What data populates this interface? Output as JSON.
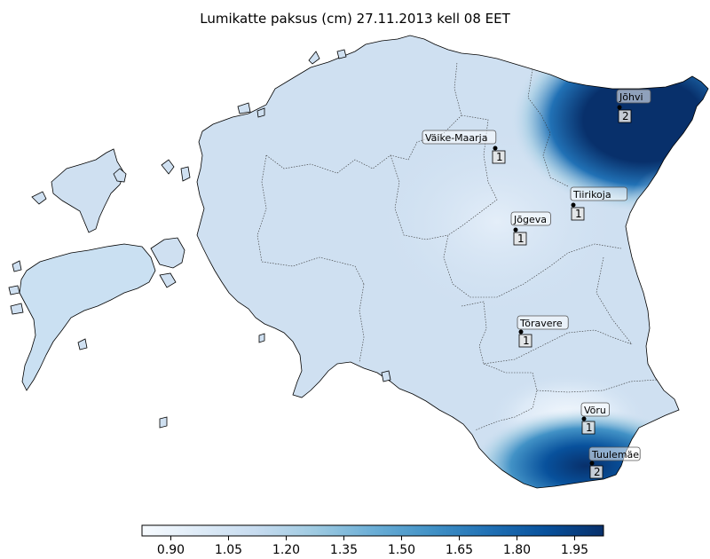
{
  "title": "Lumikatte paksus (cm) 27.11.2013 kell 08 EET",
  "stations": [
    {
      "name": "Jõhvi",
      "value": "2"
    },
    {
      "name": "Väike-Maarja",
      "value": "1"
    },
    {
      "name": "Tiirikoja",
      "value": "1"
    },
    {
      "name": "Jõgeva",
      "value": "1"
    },
    {
      "name": "Tõravere",
      "value": "1"
    },
    {
      "name": "Võru",
      "value": "1"
    },
    {
      "name": "Tuulemäe",
      "value": "2"
    }
  ],
  "colorbar": {
    "ticks": [
      "0.90",
      "1.05",
      "1.20",
      "1.35",
      "1.50",
      "1.65",
      "1.80",
      "1.95"
    ],
    "min": 0.825,
    "max": 2.025,
    "colormap": "Blues",
    "colors": [
      "#f7fbff",
      "#deebf7",
      "#c6dbef",
      "#9ecae1",
      "#6baed6",
      "#4292c6",
      "#2171b5",
      "#08519c",
      "#08306b"
    ]
  },
  "colors": {
    "base_fill": "#cfe0f1",
    "light_fill": "#e8f1fa",
    "dark_fill": "#08306b",
    "border": "#000000"
  }
}
